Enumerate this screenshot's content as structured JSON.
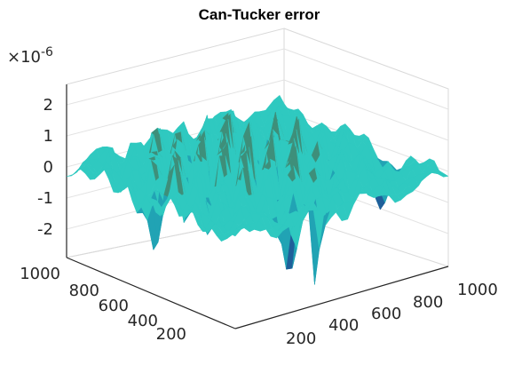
{
  "chart_data": {
    "type": "surface",
    "title": "Can-Tucker error",
    "xlabel": "",
    "ylabel": "",
    "zlabel": "",
    "z_exponent_label": "×10",
    "z_exponent_power": "-6",
    "xlim": [
      0,
      1000
    ],
    "ylim": [
      0,
      1000
    ],
    "zlim": [
      -3,
      3
    ],
    "x_ticks": [
      "200",
      "400",
      "600",
      "800",
      "1000"
    ],
    "y_ticks": [
      "200",
      "400",
      "600",
      "800",
      "1000"
    ],
    "z_ticks": [
      "2",
      "1",
      "0",
      "-1",
      "-2"
    ],
    "colormap": [
      "#1e2080",
      "#1f5f9a",
      "#21a3b4",
      "#2fc9c0",
      "#3e8f7a",
      "#8c9a3a",
      "#d7a83a"
    ],
    "grid": true,
    "surface_summary": "oscillatory error surface with large peaks near the center and deep narrow troughs toward the front edge"
  }
}
